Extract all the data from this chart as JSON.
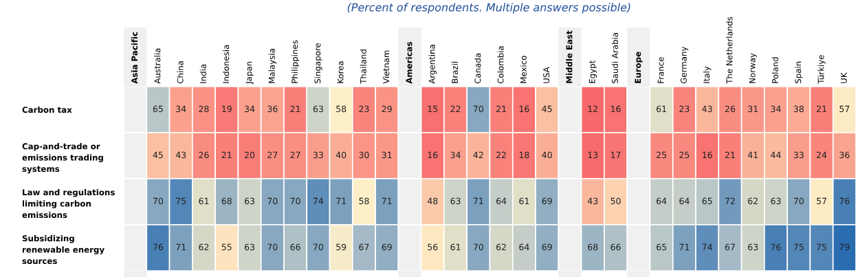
{
  "chart_data": {
    "type": "heatmap",
    "subtitle": "(Percent of respondents. Multiple answers possible)",
    "data_labels": true,
    "categories": [
      "Asia Pacific",
      "Australia",
      "China",
      "India",
      "Indonesia",
      "Japan",
      "Malaysia",
      "Philippines",
      "Singapore",
      "Korea",
      "Thailand",
      "Vietnam",
      "Americas",
      "Argentina",
      "Brazil",
      "Canada",
      "Colombia",
      "Mexico",
      "USA",
      "Middle East",
      "Egypt",
      "Saudi Arabia",
      "Europe",
      "France",
      "Germany",
      "Italy",
      "The Netherlands",
      "Norway",
      "Poland",
      "Spain",
      "Türkiye",
      "UK"
    ],
    "y_categories": [
      "Carbon tax",
      "Cap-and-trade or\nemissions trading\nsystems",
      "Law and regulations\nlimiting carbon\nemissions",
      "Subsidizing\nrenewable energy\nsources"
    ],
    "cells": [
      [
        null,
        65,
        34,
        28,
        19,
        34,
        36,
        21,
        63,
        58,
        23,
        29,
        null,
        15,
        22,
        70,
        21,
        16,
        45,
        null,
        12,
        16,
        null,
        61,
        23,
        43,
        26,
        31,
        34,
        38,
        21,
        57
      ],
      [
        null,
        45,
        43,
        26,
        21,
        20,
        27,
        27,
        33,
        40,
        30,
        31,
        null,
        16,
        34,
        42,
        22,
        18,
        40,
        null,
        13,
        17,
        null,
        25,
        25,
        16,
        21,
        41,
        44,
        33,
        24,
        36
      ],
      [
        null,
        70,
        75,
        61,
        68,
        63,
        70,
        70,
        74,
        71,
        58,
        71,
        null,
        48,
        63,
        71,
        64,
        61,
        69,
        null,
        43,
        50,
        null,
        64,
        64,
        65,
        72,
        62,
        63,
        70,
        57,
        76
      ],
      [
        null,
        76,
        71,
        62,
        55,
        63,
        70,
        66,
        70,
        59,
        67,
        69,
        null,
        56,
        61,
        70,
        62,
        64,
        69,
        null,
        68,
        66,
        null,
        65,
        71,
        74,
        67,
        63,
        76,
        75,
        75,
        79
      ]
    ]
  }
}
